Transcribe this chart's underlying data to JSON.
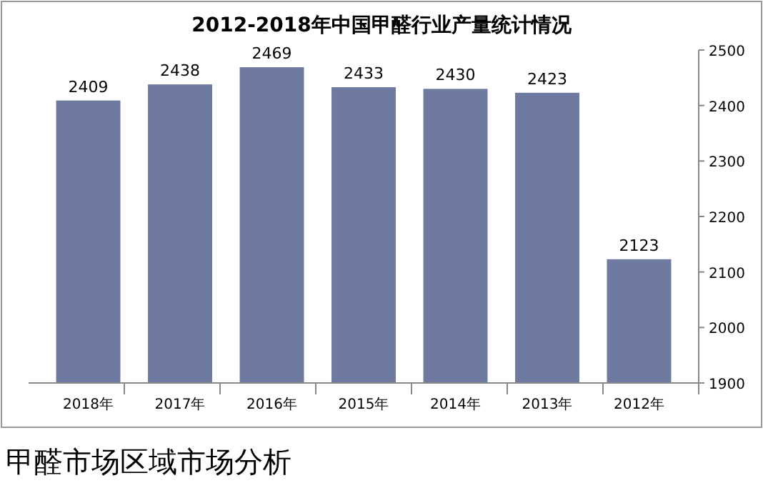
{
  "chart_data": {
    "type": "bar",
    "title": "2012-2018年中国甲醛行业产量统计情况",
    "categories": [
      "2018年",
      "2017年",
      "2016年",
      "2015年",
      "2014年",
      "2013年",
      "2012年"
    ],
    "values": [
      2409,
      2438,
      2469,
      2433,
      2430,
      2423,
      2123
    ],
    "color": "#6f7aa0",
    "ylim": [
      1900,
      2500
    ],
    "yticks": [
      1900,
      2000,
      2100,
      2200,
      2300,
      2400,
      2500
    ],
    "data_labels": true,
    "annotations": [
      "甲醛市场区域市场分析"
    ]
  }
}
